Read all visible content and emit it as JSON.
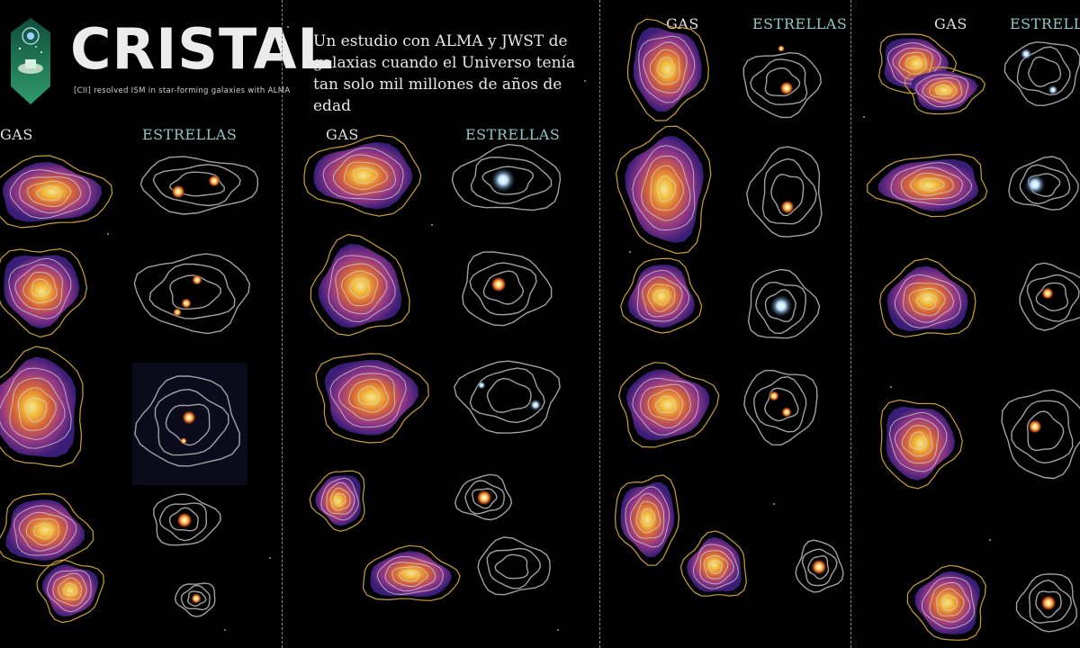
{
  "logo": {
    "name": "CRISTAL",
    "tagline": "[CII] resolved ISM in star-forming galaxies with ALMA"
  },
  "headline": "Un estudio con ALMA y JWST de galaxias cuando el Universo tenía tan solo mil millones de años de edad",
  "panel_labels": {
    "gas": "GAS",
    "stars": "ESTRELLAS"
  },
  "colors": {
    "background": "#000000",
    "gas_outer": "#3a1f7a",
    "gas_mid": "#c0408a",
    "gas_core": "#ffd45a",
    "contour_gold": "#c9a030",
    "contour_white": "#d8d8d8",
    "stars_teal_label": "#8fc6c4"
  }
}
